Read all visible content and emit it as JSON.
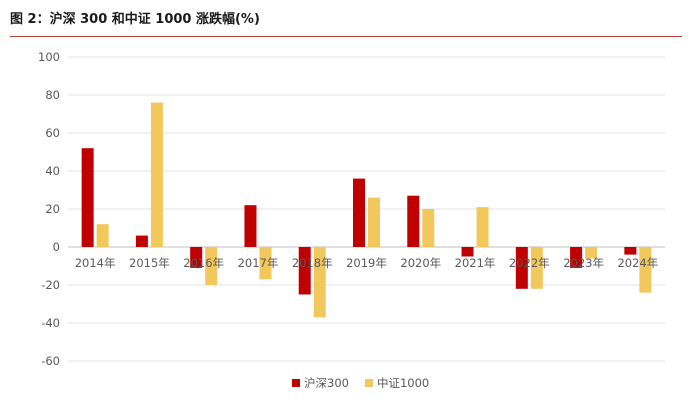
{
  "figure": {
    "title": "图 2：沪深 300 和中证 1000 涨跌幅(%)"
  },
  "chart_data": {
    "type": "bar",
    "title": "",
    "xlabel": "",
    "ylabel": "",
    "categories": [
      "2014年",
      "2015年",
      "2016年",
      "2017年",
      "2018年",
      "2019年",
      "2020年",
      "2021年",
      "2022年",
      "2023年",
      "2024年"
    ],
    "series": [
      {
        "name": "沪深300",
        "color": "#c00000",
        "values": [
          52,
          6,
          -11,
          22,
          -25,
          36,
          27,
          -5,
          -22,
          -11,
          -4
        ]
      },
      {
        "name": "中证1000",
        "color": "#f2c75c",
        "values": [
          12,
          76,
          -20,
          -17,
          -37,
          26,
          20,
          21,
          -22,
          -6,
          -24
        ]
      }
    ],
    "ylim": [
      -60,
      100
    ],
    "yticks": [
      -60,
      -40,
      -20,
      0,
      20,
      40,
      60,
      80,
      100
    ],
    "grid": true,
    "legend": "bottom-center"
  }
}
